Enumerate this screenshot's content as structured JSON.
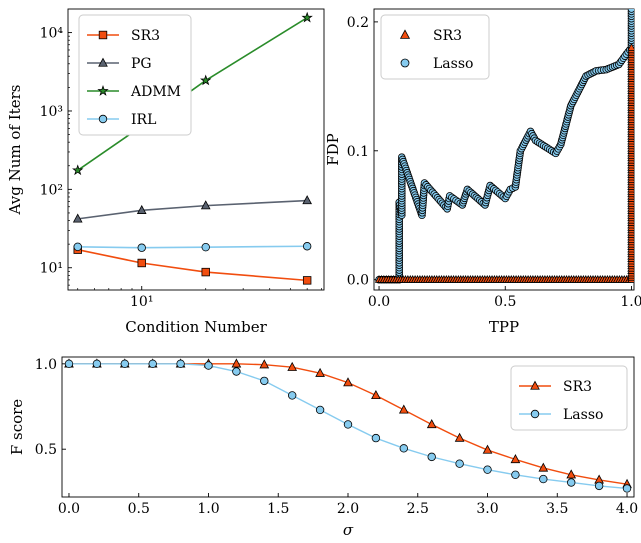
{
  "chart_data": [
    {
      "type": "line",
      "title": "",
      "xlabel": "Condition Number",
      "ylabel": "Avg Num of Iters",
      "xscale": "log",
      "yscale": "log",
      "xlim": [
        4.5,
        72
      ],
      "ylim": [
        5.2,
        20000
      ],
      "xticks": [
        {
          "value": 10,
          "label": "10¹"
        }
      ],
      "yticks": [
        {
          "value": 10,
          "label": "10¹"
        },
        {
          "value": 100,
          "label": "10²"
        },
        {
          "value": 1000,
          "label": "10³"
        },
        {
          "value": 10000,
          "label": "10⁴"
        }
      ],
      "grid": false,
      "legend": "top-left",
      "x": [
        5,
        10,
        20,
        60
      ],
      "series": [
        {
          "name": "SR3",
          "color": "#f14d0f",
          "marker": "square",
          "values": [
            17,
            11.5,
            8.8,
            6.9
          ]
        },
        {
          "name": "PG",
          "color": "#5a6270",
          "marker": "triangle",
          "values": [
            42,
            54,
            62,
            72
          ]
        },
        {
          "name": "ADMM",
          "color": "#2a8c2a",
          "marker": "star",
          "values": [
            175,
            640,
            2450,
            15500
          ]
        },
        {
          "name": "IRL",
          "color": "#86cbef",
          "marker": "circle",
          "values": [
            18.5,
            18,
            18.3,
            18.8
          ]
        }
      ]
    },
    {
      "type": "scatter",
      "title": "",
      "xlabel": "TPP",
      "ylabel": "FDP",
      "xlim": [
        -0.02,
        1.01
      ],
      "ylim": [
        -0.008,
        0.21
      ],
      "xticks": [
        {
          "value": 0,
          "label": "0.0"
        },
        {
          "value": 0.5,
          "label": "0.5"
        },
        {
          "value": 1,
          "label": "1.0"
        }
      ],
      "yticks": [
        {
          "value": 0,
          "label": "0.0"
        },
        {
          "value": 0.1,
          "label": "0.1"
        },
        {
          "value": 0.2,
          "label": "0.2"
        }
      ],
      "grid": false,
      "legend": "top-left",
      "series": [
        {
          "name": "SR3",
          "color": "#f14d0f",
          "marker": "triangle",
          "trend": [
            [
              0,
              0
            ],
            [
              1,
              0
            ],
            [
              1,
              0.005
            ],
            [
              1,
              0.18
            ]
          ]
        },
        {
          "name": "Lasso",
          "color": "#86cbef",
          "marker": "circle",
          "trend": [
            [
              0,
              0
            ],
            [
              0.08,
              0
            ],
            [
              0.08,
              0.06
            ],
            [
              0.09,
              0.05
            ],
            [
              0.09,
              0.095
            ],
            [
              0.17,
              0.05
            ],
            [
              0.18,
              0.075
            ],
            [
              0.27,
              0.055
            ],
            [
              0.28,
              0.065
            ],
            [
              0.33,
              0.058
            ],
            [
              0.35,
              0.07
            ],
            [
              0.42,
              0.058
            ],
            [
              0.44,
              0.073
            ],
            [
              0.5,
              0.063
            ],
            [
              0.52,
              0.07
            ],
            [
              0.54,
              0.072
            ],
            [
              0.56,
              0.1
            ],
            [
              0.6,
              0.115
            ],
            [
              0.62,
              0.108
            ],
            [
              0.7,
              0.098
            ],
            [
              0.72,
              0.105
            ],
            [
              0.76,
              0.135
            ],
            [
              0.82,
              0.158
            ],
            [
              0.86,
              0.162
            ],
            [
              0.9,
              0.163
            ],
            [
              0.95,
              0.167
            ],
            [
              0.98,
              0.175
            ],
            [
              1,
              0.18
            ],
            [
              1,
              0.21
            ]
          ]
        }
      ]
    },
    {
      "type": "line",
      "title": "",
      "xlabel": "σ",
      "ylabel": "F score",
      "xlim": [
        -0.05,
        4.05
      ],
      "ylim": [
        0.22,
        1.04
      ],
      "xticks": [
        {
          "value": 0,
          "label": "0.0"
        },
        {
          "value": 0.5,
          "label": "0.5"
        },
        {
          "value": 1,
          "label": "1.0"
        },
        {
          "value": 1.5,
          "label": "1.5"
        },
        {
          "value": 2,
          "label": "2.0"
        },
        {
          "value": 2.5,
          "label": "2.5"
        },
        {
          "value": 3,
          "label": "3.0"
        },
        {
          "value": 3.5,
          "label": "3.5"
        },
        {
          "value": 4,
          "label": "4.0"
        }
      ],
      "yticks": [
        {
          "value": 0.5,
          "label": "0.5"
        },
        {
          "value": 1,
          "label": "1.0"
        }
      ],
      "grid": false,
      "legend": "top-right",
      "x": [
        0,
        0.2,
        0.4,
        0.6,
        0.8,
        1.0,
        1.2,
        1.4,
        1.6,
        1.8,
        2.0,
        2.2,
        2.4,
        2.6,
        2.8,
        3.0,
        3.2,
        3.4,
        3.6,
        3.8,
        4.0
      ],
      "series": [
        {
          "name": "SR3",
          "color": "#f14d0f",
          "marker": "triangle",
          "values": [
            1.0,
            1.0,
            1.0,
            1.0,
            1.0,
            1.0,
            1.0,
            0.995,
            0.98,
            0.945,
            0.89,
            0.815,
            0.73,
            0.645,
            0.565,
            0.495,
            0.44,
            0.39,
            0.35,
            0.32,
            0.295
          ]
        },
        {
          "name": "Lasso",
          "color": "#86cbef",
          "marker": "circle",
          "values": [
            1.0,
            1.0,
            1.0,
            1.0,
            1.0,
            0.99,
            0.955,
            0.9,
            0.815,
            0.73,
            0.645,
            0.565,
            0.505,
            0.455,
            0.415,
            0.38,
            0.35,
            0.325,
            0.305,
            0.285,
            0.27
          ]
        }
      ]
    }
  ]
}
